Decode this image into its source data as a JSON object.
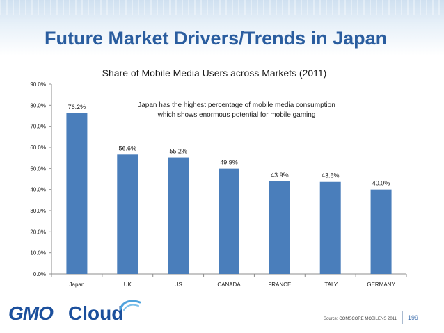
{
  "slide": {
    "title": "Future Market Drivers/Trends in Japan",
    "source": "Source: COMSCORE MOBILENS 2011",
    "page_number": "199",
    "logo": {
      "text_left": "GMO",
      "text_right": "Cloud",
      "icon": "cloud-swoosh-icon"
    }
  },
  "colors": {
    "bar": "#4a7ebb",
    "title": "#2a5d9f",
    "axis": "#8c8c8c",
    "grid": "#d9d9d9"
  },
  "chart_data": {
    "type": "bar",
    "title": "Share of Mobile Media Users across Markets (2011)",
    "annotation": [
      "Japan has the highest percentage of mobile media consumption",
      "which shows enormous potential for mobile gaming"
    ],
    "categories": [
      "Japan",
      "UK",
      "US",
      "CANADA",
      "FRANCE",
      "ITALY",
      "GERMANY"
    ],
    "values": [
      76.2,
      56.6,
      55.2,
      49.9,
      43.9,
      43.6,
      40.0
    ],
    "data_labels": [
      "76.2%",
      "56.6%",
      "55.2%",
      "49.9%",
      "43.9%",
      "43.6%",
      "40.0%"
    ],
    "ylim": [
      0,
      90
    ],
    "yticks": [
      0,
      10,
      20,
      30,
      40,
      50,
      60,
      70,
      80,
      90
    ],
    "ytick_labels": [
      "0.0%",
      "10.0%",
      "20.0%",
      "30.0%",
      "40.0%",
      "50.0%",
      "60.0%",
      "70.0%",
      "80.0%",
      "90.0%"
    ],
    "grid": false,
    "legend": "none"
  }
}
